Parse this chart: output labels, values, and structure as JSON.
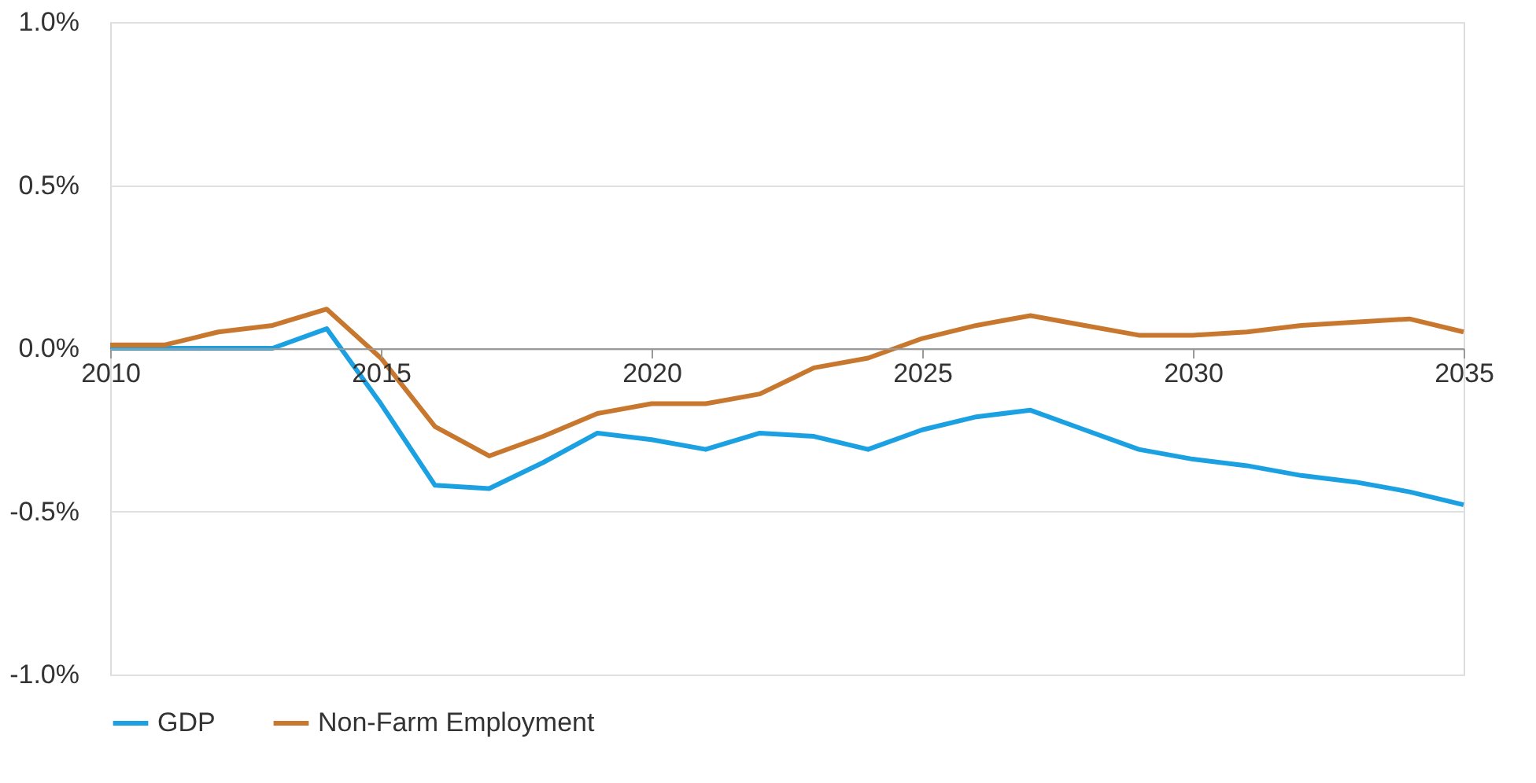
{
  "chart_data": {
    "type": "line",
    "x": [
      2010,
      2011,
      2012,
      2013,
      2014,
      2015,
      2016,
      2017,
      2018,
      2019,
      2020,
      2021,
      2022,
      2023,
      2024,
      2025,
      2026,
      2027,
      2028,
      2029,
      2030,
      2031,
      2032,
      2033,
      2034,
      2035
    ],
    "series": [
      {
        "name": "GDP",
        "color": "#1ba1e2",
        "values": [
          0,
          0,
          0,
          0,
          0.06,
          -0.17,
          -0.42,
          -0.43,
          -0.35,
          -0.26,
          -0.28,
          -0.31,
          -0.26,
          -0.27,
          -0.31,
          -0.25,
          -0.21,
          -0.19,
          -0.25,
          -0.31,
          -0.34,
          -0.36,
          -0.39,
          -0.41,
          -0.44,
          -0.48
        ]
      },
      {
        "name": "Non-Farm Employment",
        "color": "#c8782e",
        "values": [
          0.01,
          0.01,
          0.05,
          0.07,
          0.12,
          -0.03,
          -0.24,
          -0.33,
          -0.27,
          -0.2,
          -0.17,
          -0.17,
          -0.14,
          -0.06,
          -0.03,
          0.03,
          0.07,
          0.1,
          0.07,
          0.04,
          0.04,
          0.05,
          0.07,
          0.08,
          0.09,
          0.05
        ]
      }
    ],
    "xlim": [
      2010,
      2035
    ],
    "xticks": [
      2010,
      2015,
      2020,
      2025,
      2030,
      2035
    ],
    "ylim": [
      -1.0,
      1.0
    ],
    "yticks": [
      {
        "value": -1.0,
        "label": "-1.0%"
      },
      {
        "value": -0.5,
        "label": "-0.5%"
      },
      {
        "value": 0,
        "label": "0.0%"
      },
      {
        "value": 0.5,
        "label": "0.5%"
      },
      {
        "value": 1.0,
        "label": "1.0%"
      }
    ],
    "grid": "y",
    "legend": "bottom",
    "marker": "none",
    "line_style": "solid"
  }
}
